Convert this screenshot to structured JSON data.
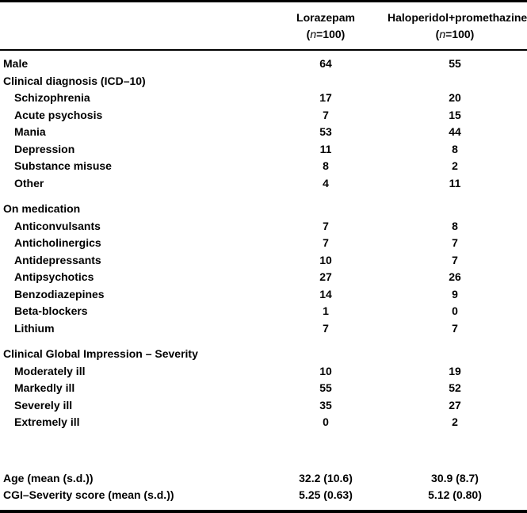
{
  "table": {
    "header": {
      "columns": [
        {
          "name": "Lorazepam"
        },
        {
          "name": "Haloperidol+promethazine"
        }
      ],
      "n_open": "(",
      "n_var": "n",
      "n_rest": "=100)"
    },
    "rows": [
      {
        "type": "data",
        "label": "Male",
        "indent": 0,
        "values": [
          "64",
          "55"
        ]
      },
      {
        "type": "section",
        "label": "Clinical diagnosis (ICD–10)"
      },
      {
        "type": "data",
        "label": "Schizophrenia",
        "indent": 1,
        "values": [
          "17",
          "20"
        ]
      },
      {
        "type": "data",
        "label": "Acute psychosis",
        "indent": 1,
        "values": [
          "7",
          "15"
        ]
      },
      {
        "type": "data",
        "label": "Mania",
        "indent": 1,
        "values": [
          "53",
          "44"
        ]
      },
      {
        "type": "data",
        "label": "Depression",
        "indent": 1,
        "values": [
          "11",
          "8"
        ]
      },
      {
        "type": "data",
        "label": "Substance misuse",
        "indent": 1,
        "values": [
          "8",
          "2"
        ]
      },
      {
        "type": "data",
        "label": "Other",
        "indent": 1,
        "values": [
          "4",
          "11"
        ]
      },
      {
        "type": "gap"
      },
      {
        "type": "section",
        "label": "On medication"
      },
      {
        "type": "data",
        "label": "Anticonvulsants",
        "indent": 1,
        "values": [
          "7",
          "8"
        ]
      },
      {
        "type": "data",
        "label": "Anticholinergics",
        "indent": 1,
        "values": [
          "7",
          "7"
        ]
      },
      {
        "type": "data",
        "label": "Antidepressants",
        "indent": 1,
        "values": [
          "10",
          "7"
        ]
      },
      {
        "type": "data",
        "label": "Antipsychotics",
        "indent": 1,
        "values": [
          "27",
          "26"
        ]
      },
      {
        "type": "data",
        "label": "Benzodiazepines",
        "indent": 1,
        "values": [
          "14",
          "9"
        ]
      },
      {
        "type": "data",
        "label": "Beta-blockers",
        "indent": 1,
        "values": [
          "1",
          "0"
        ]
      },
      {
        "type": "data",
        "label": "Lithium",
        "indent": 1,
        "values": [
          "7",
          "7"
        ]
      },
      {
        "type": "gap"
      },
      {
        "type": "section",
        "label": "Clinical Global Impression – Severity"
      },
      {
        "type": "data",
        "label": "Moderately ill",
        "indent": 1,
        "values": [
          "10",
          "19"
        ]
      },
      {
        "type": "data",
        "label": "Markedly ill",
        "indent": 1,
        "values": [
          "55",
          "52"
        ]
      },
      {
        "type": "data",
        "label": "Severely ill",
        "indent": 1,
        "values": [
          "35",
          "27"
        ]
      },
      {
        "type": "data",
        "label": "Extremely ill",
        "indent": 1,
        "values": [
          "0",
          "2"
        ]
      },
      {
        "type": "gap_large"
      },
      {
        "type": "data",
        "label": "Age (mean (s.d.))",
        "indent": 0,
        "values": [
          "32.2 (10.6)",
          "30.9 (8.7)"
        ]
      },
      {
        "type": "data",
        "label": "CGI–Severity score (mean (s.d.))",
        "indent": 0,
        "values": [
          "5.25 (0.63)",
          "5.12 (0.80)"
        ]
      }
    ]
  }
}
